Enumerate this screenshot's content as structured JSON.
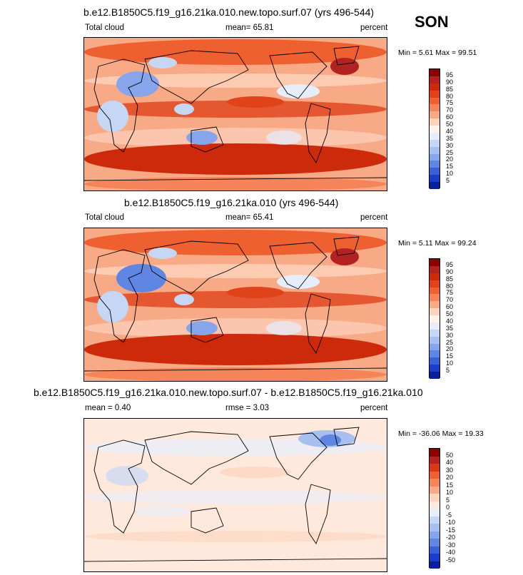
{
  "season": "SON",
  "panels": [
    {
      "title": "b.e12.B1850C5.f19_g16.21ka.010.new.topo.surf.07 (yrs 496-544)",
      "left_label": "Total cloud",
      "center_label": "mean=  65.81",
      "right_label": "percent",
      "minmax": "Min =   5.61 Max =  99.51",
      "colorbar_labels": [
        "95",
        "90",
        "85",
        "80",
        "75",
        "70",
        "60",
        "50",
        "40",
        "35",
        "30",
        "25",
        "20",
        "15",
        "10",
        "5"
      ]
    },
    {
      "title": "b.e12.B1850C5.f19_g16.21ka.010 (yrs 496-544)",
      "left_label": "Total cloud",
      "center_label": "mean=  65.41",
      "right_label": "percent",
      "minmax": "Min =   5.11 Max =  99.24",
      "colorbar_labels": [
        "95",
        "90",
        "85",
        "80",
        "75",
        "70",
        "60",
        "50",
        "40",
        "35",
        "30",
        "25",
        "20",
        "15",
        "10",
        "5"
      ]
    },
    {
      "title": "b.e12.B1850C5.f19_g16.21ka.010.new.topo.surf.07 - b.e12.B1850C5.f19_g16.21ka.010",
      "left_label": "mean =   0.40",
      "center_label": "rmse =   3.03",
      "right_label": "percent",
      "minmax": "Min = -36.06 Max =  19.33",
      "colorbar_labels": [
        "50",
        "40",
        "30",
        "20",
        "15",
        "10",
        "5",
        "0",
        "-5",
        "-10",
        "-15",
        "-20",
        "-30",
        "-40",
        "-50"
      ]
    }
  ],
  "colors": {
    "abs_scale": [
      "#8b0000",
      "#b22222",
      "#cc2a0a",
      "#e0421a",
      "#ee6030",
      "#f5845a",
      "#f8a985",
      "#fcd3bd",
      "#fff2e8",
      "#e6eefc",
      "#c6d7f6",
      "#a8c0f0",
      "#86a5ea",
      "#5f86e2",
      "#3a60d6",
      "#1a3cc8",
      "#08209a"
    ],
    "diff_scale": [
      "#8b0000",
      "#b22222",
      "#d8381a",
      "#ee6030",
      "#f5845a",
      "#f8a985",
      "#fcd3bd",
      "#ffe9dc",
      "#e6eefc",
      "#c6d7f6",
      "#a8c0f0",
      "#86a5ea",
      "#5f86e2",
      "#3a60d6",
      "#1a3cc8",
      "#08209a"
    ]
  },
  "chart_data": [
    {
      "type": "heatmap",
      "title": "b.e12.B1850C5.f19_g16.21ka.010.new.topo.surf.07 (yrs 496-544)",
      "variable": "Total cloud",
      "units": "percent",
      "season": "SON",
      "mean": 65.81,
      "min": 5.61,
      "max": 99.51,
      "contour_levels": [
        5,
        10,
        15,
        20,
        25,
        30,
        35,
        40,
        50,
        60,
        70,
        75,
        80,
        85,
        90,
        95
      ]
    },
    {
      "type": "heatmap",
      "title": "b.e12.B1850C5.f19_g16.21ka.010 (yrs 496-544)",
      "variable": "Total cloud",
      "units": "percent",
      "season": "SON",
      "mean": 65.41,
      "min": 5.11,
      "max": 99.24,
      "contour_levels": [
        5,
        10,
        15,
        20,
        25,
        30,
        35,
        40,
        50,
        60,
        70,
        75,
        80,
        85,
        90,
        95
      ]
    },
    {
      "type": "heatmap",
      "title": "b.e12.B1850C5.f19_g16.21ka.010.new.topo.surf.07 - b.e12.B1850C5.f19_g16.21ka.010",
      "units": "percent",
      "mean": 0.4,
      "rmse": 3.03,
      "min": -36.06,
      "max": 19.33,
      "contour_levels": [
        -50,
        -40,
        -30,
        -20,
        -15,
        -10,
        -5,
        0,
        5,
        10,
        15,
        20,
        30,
        40,
        50
      ]
    }
  ]
}
